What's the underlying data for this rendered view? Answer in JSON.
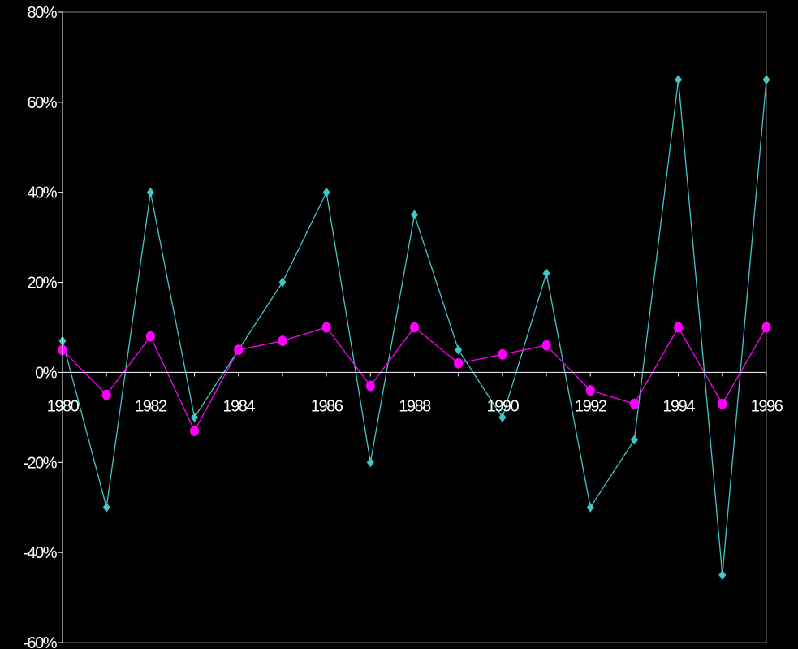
{
  "chart_data": {
    "type": "line",
    "x": [
      1980,
      1981,
      1982,
      1983,
      1984,
      1985,
      1986,
      1987,
      1988,
      1989,
      1990,
      1991,
      1992,
      1993,
      1994,
      1995,
      1996
    ],
    "series": [
      {
        "values": [
          7,
          -30,
          40,
          -10,
          5,
          20,
          40,
          -20,
          35,
          5,
          -10,
          22,
          -30,
          -15,
          65,
          -45,
          65
        ],
        "color": "#40c8c8",
        "marker": "diamond"
      },
      {
        "values": [
          5,
          -5,
          8,
          -13,
          5,
          7,
          10,
          -3,
          10,
          2,
          4,
          6,
          -4,
          -7,
          10,
          -7,
          10
        ],
        "color": "#ff00ff",
        "marker": "circle"
      }
    ],
    "x_tick_labels": [
      "1980",
      "1982",
      "1984",
      "1986",
      "1988",
      "1990",
      "1992",
      "1994",
      "1996"
    ],
    "y_tick_labels": [
      "80%",
      "60%",
      "40%",
      "20%",
      "0%",
      "-20%",
      "-40%",
      "-60%"
    ],
    "ylim": [
      -60,
      80
    ],
    "xlim": [
      1980,
      1996
    ],
    "grid": false,
    "background": "#000000",
    "axis_color": "#ffffff",
    "frame_color": "#808080"
  }
}
